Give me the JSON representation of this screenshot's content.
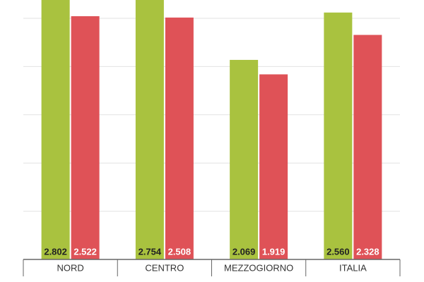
{
  "chart_data": {
    "type": "bar",
    "categories": [
      "NORD",
      "CENTRO",
      "MEZZOGIORNO",
      "ITALIA"
    ],
    "series": [
      {
        "color": "#a9c23f",
        "values": [
          2802,
          2754,
          2069,
          2560
        ],
        "value_labels": [
          "2.802",
          "2.754",
          "2.069",
          "2.560"
        ]
      },
      {
        "color": "#df5257",
        "values": [
          2522,
          2508,
          1919,
          2328
        ],
        "value_labels": [
          "2.522",
          "2.508",
          "1.919",
          "2.328"
        ]
      }
    ],
    "ylim": [
      0,
      2690
    ],
    "yticks": [
      500,
      1000,
      1500,
      2000,
      2500
    ],
    "grid": true
  }
}
